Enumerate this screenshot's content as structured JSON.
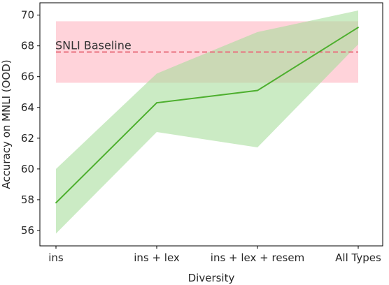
{
  "chart_data": {
    "type": "line",
    "xlabel": "Diversity",
    "ylabel": "Accuracy on MNLI (OOD)",
    "categories": [
      "ins",
      "ins + lex",
      "ins + lex + resem",
      "All Types"
    ],
    "ylim": [
      55,
      70.8
    ],
    "yticks": [
      56,
      58,
      60,
      62,
      64,
      66,
      68,
      70
    ],
    "series": [
      {
        "values": [
          57.8,
          64.3,
          65.1,
          69.2
        ],
        "lower": [
          55.8,
          62.4,
          61.4,
          68.1
        ],
        "upper": [
          60.0,
          66.2,
          68.9,
          70.3
        ],
        "color": "#4daf2e",
        "band_color": "#a8dd9c"
      }
    ],
    "baseline": {
      "label": "SNLI Baseline",
      "value": 67.6,
      "lower": 65.6,
      "upper": 69.6,
      "line_color": "#e8717e",
      "band_color": "#ffc0cb"
    },
    "grid": false,
    "legend": "none"
  }
}
